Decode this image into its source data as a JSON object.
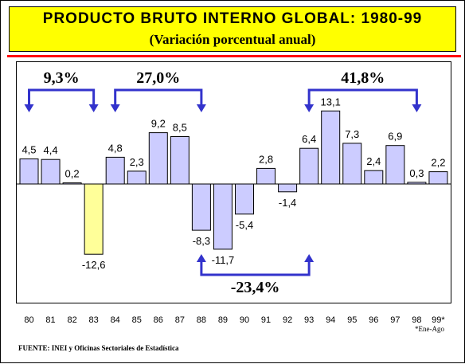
{
  "header": {
    "title": "PRODUCTO BRUTO INTERNO GLOBAL: 1980-99",
    "subtitle": "(Variación porcentual anual)"
  },
  "note": "*Ene-Ago",
  "source": "FUENTE: INEI y Oficinas Sectoriales de Estadística",
  "colors": {
    "title_background": "#ffff00",
    "rule": "#ff0000",
    "bar_default": "#ccccff",
    "bar_highlight": "#ffff99",
    "bracket": "#3333cc"
  },
  "chart_data": {
    "type": "bar",
    "categories": [
      "80",
      "81",
      "82",
      "83",
      "84",
      "85",
      "86",
      "87",
      "88",
      "89",
      "90",
      "91",
      "92",
      "93",
      "94",
      "95",
      "96",
      "97",
      "98",
      "99*"
    ],
    "values": [
      4.5,
      4.4,
      0.2,
      -12.6,
      4.8,
      2.3,
      9.2,
      8.5,
      -8.3,
      -11.7,
      -5.4,
      2.8,
      -1.4,
      6.4,
      13.1,
      7.3,
      2.4,
      6.9,
      0.3,
      2.2
    ],
    "value_labels": [
      "4,5",
      "4,4",
      "0,2",
      "-12,6",
      "4,8",
      "2,3",
      "9,2",
      "8,5",
      "-8,3",
      "-11,7",
      "-5,4",
      "2,8",
      "-1,4",
      "6,4",
      "13,1",
      "7,3",
      "2,4",
      "6,9",
      "0,3",
      "2,2"
    ],
    "highlight_category": "83",
    "ylim": [
      -14,
      15
    ],
    "grid": false,
    "legend": "none",
    "annotations": [
      {
        "label": "9,3%",
        "from": "80",
        "to": "83",
        "direction": "down"
      },
      {
        "label": "27,0%",
        "from": "84",
        "to": "88",
        "direction": "down"
      },
      {
        "label": "41,8%",
        "from": "93",
        "to": "98",
        "direction": "down"
      },
      {
        "label": "-23,4%",
        "from": "88",
        "to": "93",
        "direction": "up"
      }
    ]
  }
}
